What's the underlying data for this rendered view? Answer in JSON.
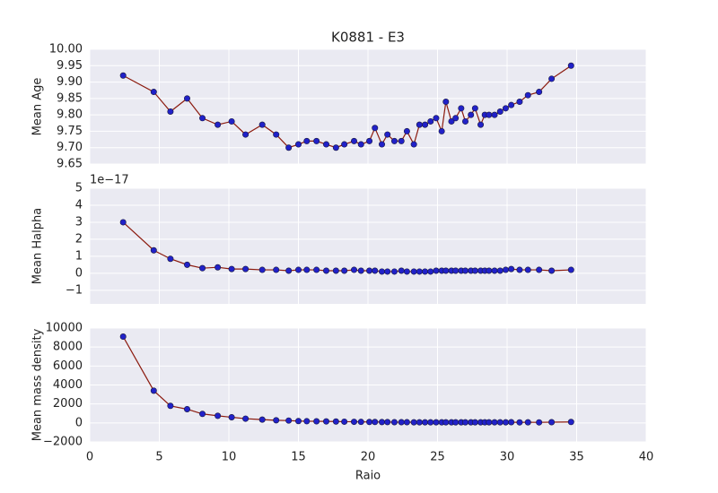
{
  "chart_data": [
    {
      "type": "line",
      "title": "K0881 - E3",
      "ylabel": "Mean Age",
      "color": "#8b1a0e",
      "marker_color": "#2121c8",
      "grid": true,
      "x": [
        2.4,
        4.6,
        5.8,
        7.0,
        8.1,
        9.2,
        10.2,
        11.2,
        12.4,
        13.4,
        14.3,
        15.0,
        15.6,
        16.3,
        17.0,
        17.7,
        18.3,
        19.0,
        19.5,
        20.1,
        20.5,
        21.0,
        21.4,
        21.9,
        22.4,
        22.8,
        23.3,
        23.7,
        24.1,
        24.5,
        24.9,
        25.3,
        25.6,
        26.0,
        26.3,
        26.7,
        27.0,
        27.4,
        27.7,
        28.1,
        28.4,
        28.7,
        29.1,
        29.5,
        29.9,
        30.3,
        30.9,
        31.5,
        32.3,
        33.2,
        34.6
      ],
      "values": [
        9.92,
        9.87,
        9.81,
        9.85,
        9.79,
        9.77,
        9.78,
        9.74,
        9.77,
        9.74,
        9.7,
        9.71,
        9.72,
        9.72,
        9.71,
        9.7,
        9.71,
        9.72,
        9.71,
        9.72,
        9.76,
        9.71,
        9.74,
        9.72,
        9.72,
        9.75,
        9.71,
        9.77,
        9.77,
        9.78,
        9.79,
        9.75,
        9.84,
        9.78,
        9.79,
        9.82,
        9.78,
        9.8,
        9.82,
        9.77,
        9.8,
        9.8,
        9.8,
        9.81,
        9.82,
        9.83,
        9.84,
        9.86,
        9.87,
        9.91,
        9.95
      ],
      "ylim": [
        9.65,
        10.0
      ],
      "yticks": [
        9.65,
        {
          "value": 9.7,
          "label": "9.70"
        },
        9.75,
        {
          "value": 9.8,
          "label": "9.80"
        },
        9.85,
        {
          "value": 9.9,
          "label": "9.90"
        },
        9.95,
        {
          "value": 10.0,
          "label": "10.00"
        }
      ]
    },
    {
      "type": "line",
      "ylabel": "Mean Halpha",
      "offset_text": "1e−17",
      "color": "#8b1a0e",
      "marker_color": "#2121c8",
      "grid": true,
      "x": [
        2.4,
        4.6,
        5.8,
        7.0,
        8.1,
        9.2,
        10.2,
        11.2,
        12.4,
        13.4,
        14.3,
        15.0,
        15.6,
        16.3,
        17.0,
        17.7,
        18.3,
        19.0,
        19.5,
        20.1,
        20.5,
        21.0,
        21.4,
        21.9,
        22.4,
        22.8,
        23.3,
        23.7,
        24.1,
        24.5,
        24.9,
        25.3,
        25.6,
        26.0,
        26.3,
        26.7,
        27.0,
        27.4,
        27.7,
        28.1,
        28.4,
        28.7,
        29.1,
        29.5,
        29.9,
        30.3,
        30.9,
        31.5,
        32.3,
        33.2,
        34.6
      ],
      "values": [
        3.0,
        1.35,
        0.85,
        0.5,
        0.3,
        0.35,
        0.25,
        0.25,
        0.2,
        0.2,
        0.15,
        0.2,
        0.2,
        0.2,
        0.15,
        0.15,
        0.15,
        0.2,
        0.15,
        0.15,
        0.15,
        0.1,
        0.1,
        0.1,
        0.15,
        0.1,
        0.1,
        0.1,
        0.1,
        0.1,
        0.15,
        0.15,
        0.15,
        0.15,
        0.15,
        0.15,
        0.15,
        0.15,
        0.15,
        0.15,
        0.15,
        0.15,
        0.15,
        0.15,
        0.2,
        0.25,
        0.2,
        0.2,
        0.2,
        0.15,
        0.2
      ],
      "ylim": [
        -1.8,
        5
      ],
      "yticks": [
        {
          "value": -1,
          "label": "−1"
        },
        0,
        1,
        2,
        3,
        4,
        5
      ]
    },
    {
      "type": "line",
      "ylabel": "Mean mass density",
      "xlabel": "Raio",
      "color": "#8b1a0e",
      "marker_color": "#2121c8",
      "grid": true,
      "x": [
        2.4,
        4.6,
        5.8,
        7.0,
        8.1,
        9.2,
        10.2,
        11.2,
        12.4,
        13.4,
        14.3,
        15.0,
        15.6,
        16.3,
        17.0,
        17.7,
        18.3,
        19.0,
        19.5,
        20.1,
        20.5,
        21.0,
        21.4,
        21.9,
        22.4,
        22.8,
        23.3,
        23.7,
        24.1,
        24.5,
        24.9,
        25.3,
        25.6,
        26.0,
        26.3,
        26.7,
        27.0,
        27.4,
        27.7,
        28.1,
        28.4,
        28.7,
        29.1,
        29.5,
        29.9,
        30.3,
        30.9,
        31.5,
        32.3,
        33.2,
        34.6
      ],
      "values": [
        9100,
        3400,
        1800,
        1450,
        950,
        750,
        600,
        450,
        350,
        280,
        250,
        200,
        180,
        170,
        160,
        150,
        130,
        120,
        110,
        100,
        100,
        90,
        90,
        80,
        80,
        80,
        70,
        70,
        70,
        70,
        70,
        70,
        70,
        70,
        70,
        70,
        70,
        70,
        70,
        70,
        70,
        70,
        70,
        70,
        70,
        80,
        60,
        70,
        60,
        80,
        100
      ],
      "ylim": [
        -2000,
        10000
      ],
      "yticks": [
        {
          "value": -2000,
          "label": "−2000"
        },
        0,
        2000,
        4000,
        6000,
        8000,
        10000
      ],
      "xlim": [
        0,
        40
      ],
      "xticks": [
        0,
        5,
        10,
        15,
        20,
        25,
        30,
        35,
        40
      ]
    }
  ]
}
